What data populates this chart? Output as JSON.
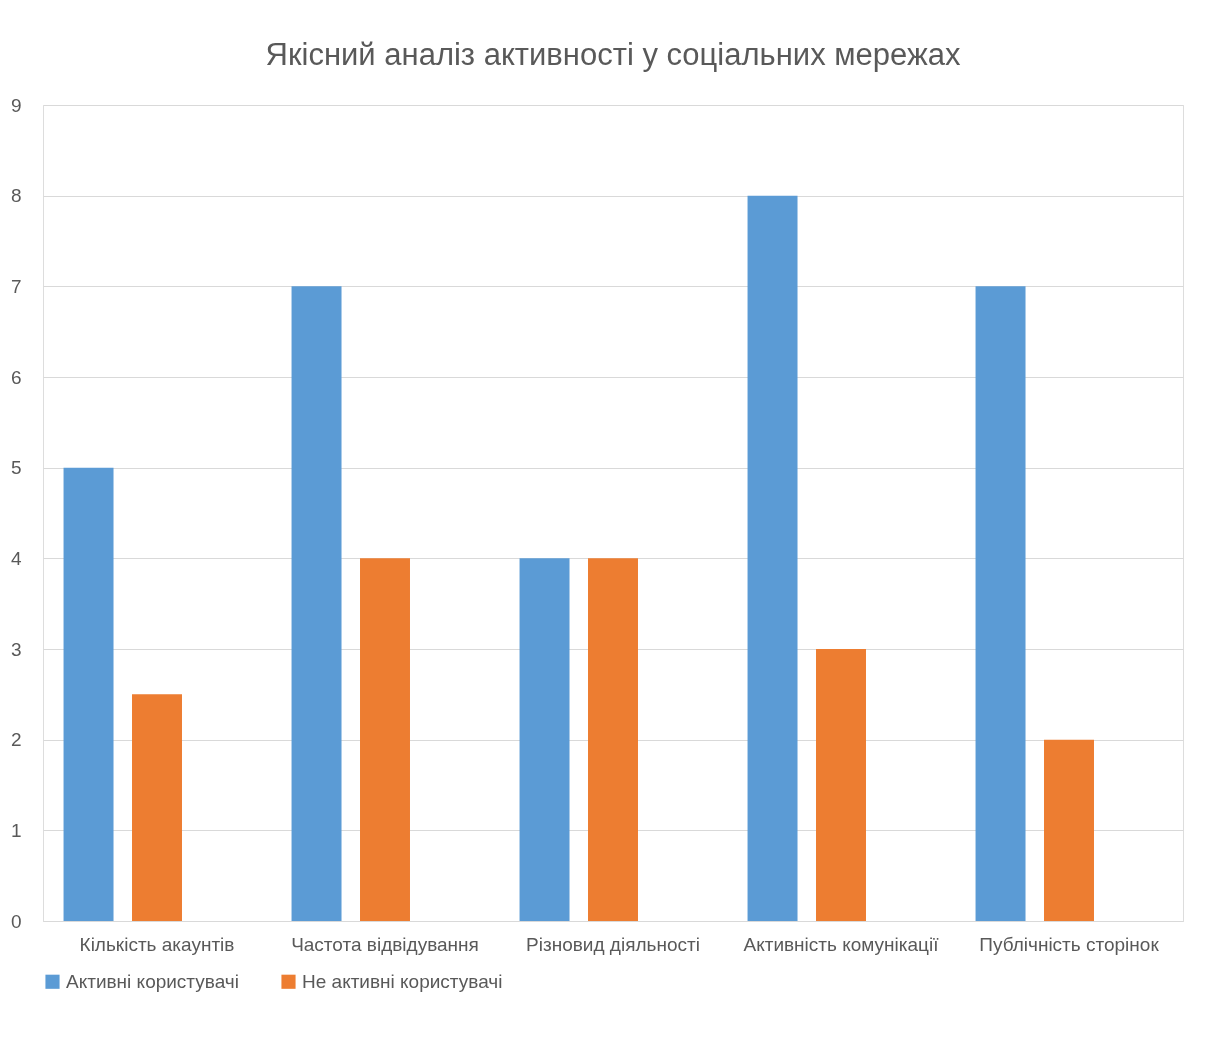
{
  "chart_data": {
    "type": "bar",
    "title": "Якісний аналіз активності у соціальних мережах",
    "categories": [
      "Кількість акаунтів",
      "Частота відвідування",
      "Різновид діяльності",
      "Активність комунікації",
      "Публічність сторінок"
    ],
    "series": [
      {
        "name": "Активні користувачі",
        "color": "#5b9bd5",
        "values": [
          5,
          7,
          4,
          8,
          7
        ]
      },
      {
        "name": "Не активні користувачі",
        "color": "#ed7d31",
        "values": [
          2.5,
          4,
          4,
          3,
          2
        ]
      }
    ],
    "ylim": [
      0,
      9
    ],
    "yticks": [
      0,
      1,
      2,
      3,
      4,
      5,
      6,
      7,
      8,
      9
    ],
    "grid": "y",
    "legend": "bottom"
  }
}
